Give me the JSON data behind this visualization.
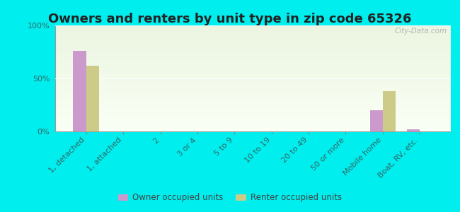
{
  "title": "Owners and renters by unit type in zip code 65326",
  "categories": [
    "1, detached",
    "1, attached",
    "2",
    "3 or 4",
    "5 to 9",
    "10 to 19",
    "20 to 49",
    "50 or more",
    "Mobile home",
    "Boat, RV, etc."
  ],
  "owner_values": [
    76,
    0,
    0,
    0,
    0,
    0,
    0,
    0,
    20,
    2
  ],
  "renter_values": [
    62,
    0,
    0,
    0,
    0,
    0,
    0,
    0,
    38,
    0
  ],
  "owner_color": "#cc99cc",
  "renter_color": "#cccc88",
  "background_color": "#00eeee",
  "ylim": [
    0,
    100
  ],
  "yticks": [
    0,
    50,
    100
  ],
  "ytick_labels": [
    "0%",
    "50%",
    "100%"
  ],
  "bar_width": 0.35,
  "legend_labels": [
    "Owner occupied units",
    "Renter occupied units"
  ],
  "watermark": "City-Data.com",
  "title_fontsize": 13,
  "tick_label_fontsize": 8,
  "tick_label_color": "#336666"
}
